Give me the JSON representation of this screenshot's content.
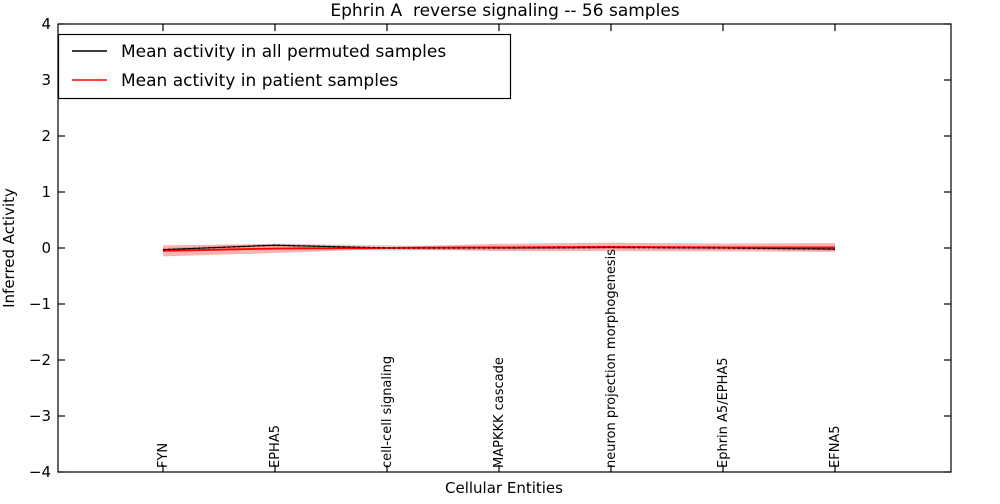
{
  "chart_data": {
    "type": "line",
    "title": "Ephrin A  reverse signaling -- 56 samples",
    "xlabel": "Cellular Entities",
    "ylabel": "Inferred Activity",
    "ylim": [
      -4,
      4
    ],
    "yticks": [
      4,
      3,
      2,
      1,
      0,
      -1,
      -2,
      -3,
      -4
    ],
    "grid": false,
    "legend_position": "upper left",
    "categories": [
      "FYN",
      "EPHA5",
      "cell-cell signaling",
      "MAPKKK cascade",
      "neuron projection morphogenesis",
      "Ephrin A5/EPHA5",
      "EFNA5"
    ],
    "series": [
      {
        "name": "Mean activity in all permuted samples",
        "color": "#000000",
        "line_style": "solid-with-dotted-overlay",
        "values": [
          -0.03,
          0.05,
          0.0,
          0.0,
          0.01,
          0.0,
          -0.02
        ],
        "band_halfwidth": [
          0.03,
          0.03,
          0.05,
          0.03,
          0.03,
          0.03,
          0.03
        ],
        "band_color": "rgba(0,0,0,0.15)"
      },
      {
        "name": "Mean activity in patient samples",
        "color": "#ff0000",
        "line_style": "solid",
        "values": [
          -0.05,
          -0.01,
          0.0,
          0.01,
          0.02,
          0.01,
          0.01
        ],
        "band_halfwidth": [
          0.1,
          0.08,
          0.02,
          0.065,
          0.075,
          0.07,
          0.08
        ],
        "band_color": "rgba(255,0,0,0.30)"
      }
    ]
  },
  "colors": {
    "background": "#ffffff",
    "frame": "#000000",
    "tick": "#000000"
  }
}
